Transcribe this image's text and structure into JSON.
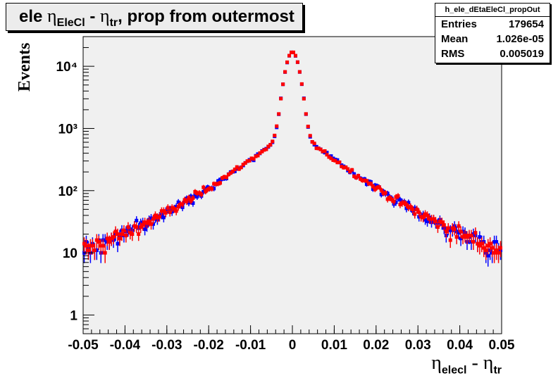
{
  "title": {
    "pre": "ele ",
    "eta1": "η",
    "sub1": "EleCl",
    "mid": " - ",
    "eta2": "η",
    "sub2": "tr",
    "post": ", prop from outermost"
  },
  "stats": {
    "name": "h_ele_dEtaEleCl_propOut",
    "entries_label": "Entries",
    "entries_value": "179654",
    "mean_label": "Mean",
    "mean_value": "1.026e-05",
    "rms_label": "RMS",
    "rms_value": "0.005019"
  },
  "axes": {
    "ylabel": "Events",
    "xlabel_eta1": "η",
    "xlabel_sub1": "elecl",
    "xlabel_mid": " - ",
    "xlabel_eta2": "η",
    "xlabel_sub2": "tr"
  },
  "chart_data": {
    "type": "scatter",
    "title": "ele ηEleCl - ηtr, prop from outermost",
    "xlabel": "ηelecl - ηtr",
    "ylabel": "Events",
    "xlim": [
      -0.05,
      0.05
    ],
    "ylim": [
      0.5,
      30000
    ],
    "yscale": "log",
    "x_ticks": [
      -0.05,
      -0.04,
      -0.03,
      -0.02,
      -0.01,
      0,
      0.01,
      0.02,
      0.03,
      0.04,
      0.05
    ],
    "x_tick_labels": [
      "-0.05",
      "-0.04",
      "-0.03",
      "-0.02",
      "-0.01",
      "0",
      "0.01",
      "0.02",
      "0.03",
      "0.04",
      "0.05"
    ],
    "y_ticks": [
      1,
      10,
      100,
      1000,
      10000
    ],
    "y_tick_labels": [
      "1",
      "10",
      "10²",
      "10³",
      "10⁴"
    ],
    "bins": 200,
    "shape": {
      "peak": 16000,
      "core_sigma": 0.0014,
      "tail_amp": 900,
      "tail_scale": 0.0085,
      "outer_amp": 55,
      "outer_scale": 0.03
    },
    "series": [
      {
        "color": "#0000ff"
      },
      {
        "color": "#ff0000"
      }
    ]
  }
}
